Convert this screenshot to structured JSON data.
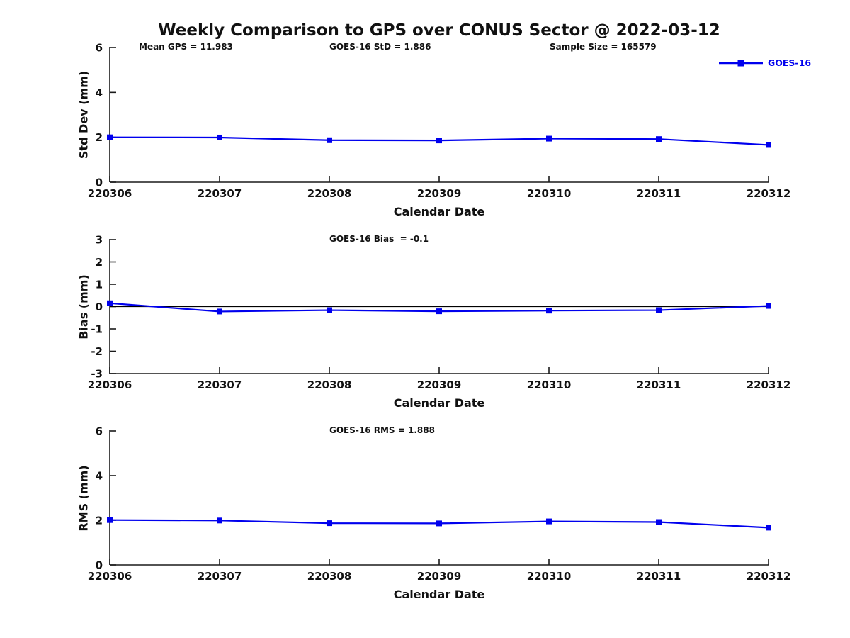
{
  "figure_title": "Weekly Comparison to GPS over CONUS Sector @ 2022-03-12",
  "header_annotations": {
    "mean_gps": "Mean GPS = 11.983",
    "std": "GOES-16 StD = 1.886",
    "sample_size": "Sample Size = 165579"
  },
  "legend": {
    "label": "GOES-16",
    "color": "#0000EE",
    "marker": "square",
    "position": "top-right"
  },
  "colors": {
    "series": "#0000EE",
    "axis": "#1a1a1a",
    "text": "#111111",
    "background": "#ffffff"
  },
  "chart_data": [
    {
      "type": "line",
      "name": "std-dev",
      "categories": [
        "220306",
        "220307",
        "220308",
        "220309",
        "220310",
        "220311",
        "220312"
      ],
      "series": [
        {
          "name": "GOES-16",
          "color": "#0000EE",
          "marker": "square",
          "values": [
            2.0,
            1.99,
            1.87,
            1.86,
            1.94,
            1.92,
            1.66
          ]
        }
      ],
      "ylabel": "Std Dev (mm)",
      "xlabel": "Calendar Date",
      "ylim": [
        0,
        6
      ],
      "yticks": [
        0,
        2,
        4,
        6
      ],
      "annotation": "",
      "zero_line": false,
      "grid": false
    },
    {
      "type": "line",
      "name": "bias",
      "categories": [
        "220306",
        "220307",
        "220308",
        "220309",
        "220310",
        "220311",
        "220312"
      ],
      "series": [
        {
          "name": "GOES-16",
          "color": "#0000EE",
          "marker": "square",
          "values": [
            0.15,
            -0.22,
            -0.16,
            -0.21,
            -0.18,
            -0.16,
            0.03
          ]
        }
      ],
      "ylabel": "Bias (mm)",
      "xlabel": "Calendar Date",
      "ylim": [
        -3,
        3
      ],
      "yticks": [
        -3,
        -2,
        -1,
        0,
        1,
        2,
        3
      ],
      "annotation": "GOES-16 Bias  = -0.1",
      "zero_line": true,
      "grid": false
    },
    {
      "type": "line",
      "name": "rms",
      "categories": [
        "220306",
        "220307",
        "220308",
        "220309",
        "220310",
        "220311",
        "220312"
      ],
      "series": [
        {
          "name": "GOES-16",
          "color": "#0000EE",
          "marker": "square",
          "values": [
            2.01,
            1.99,
            1.87,
            1.86,
            1.95,
            1.92,
            1.67
          ]
        }
      ],
      "ylabel": "RMS (mm)",
      "xlabel": "Calendar Date",
      "ylim": [
        0,
        6
      ],
      "yticks": [
        0,
        2,
        4,
        6
      ],
      "annotation": "GOES-16 RMS = 1.888",
      "zero_line": false,
      "grid": false
    }
  ]
}
